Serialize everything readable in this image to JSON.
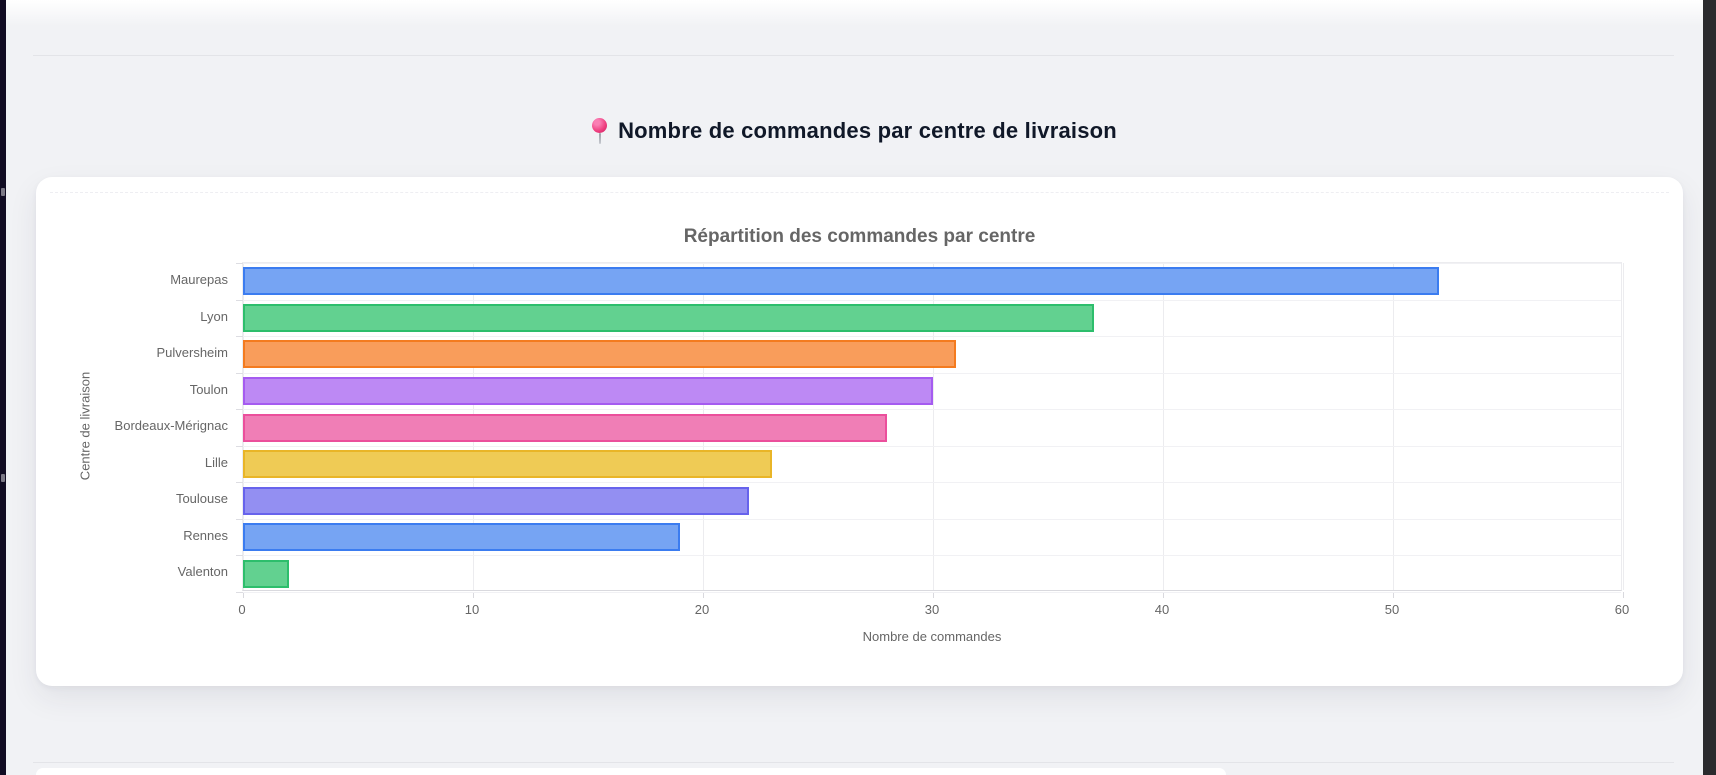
{
  "page": {
    "heading": {
      "icon": "round-pushpin-icon",
      "text": "Nombre de commandes par centre de livraison"
    }
  },
  "chart_data": {
    "type": "bar",
    "orientation": "horizontal",
    "title": "Répartition des commandes par centre",
    "categories": [
      "Maurepas",
      "Lyon",
      "Pulversheim",
      "Toulon",
      "Bordeaux-Mérignac",
      "Lille",
      "Toulouse",
      "Rennes",
      "Valenton"
    ],
    "values": [
      52,
      37,
      31,
      30,
      28,
      23,
      22,
      19,
      2
    ],
    "xlabel": "Nombre de commandes",
    "ylabel": "Centre de livraison",
    "xlim": [
      0,
      60
    ],
    "xticks": [
      0,
      10,
      20,
      30,
      40,
      50,
      60
    ],
    "grid": true,
    "legend": "none",
    "bar_colors": [
      {
        "fill": "#76A4F3",
        "border": "#3B7CF0"
      },
      {
        "fill": "#62D190",
        "border": "#2DBE6C"
      },
      {
        "fill": "#F99D5B",
        "border": "#F47B1F"
      },
      {
        "fill": "#BD89F4",
        "border": "#A55BF0"
      },
      {
        "fill": "#F07EB6",
        "border": "#EB4F9C"
      },
      {
        "fill": "#EFCB55",
        "border": "#E9B527"
      },
      {
        "fill": "#938FF2",
        "border": "#6763EC"
      },
      {
        "fill": "#76A4F3",
        "border": "#3B7CF0"
      },
      {
        "fill": "#62D190",
        "border": "#2DBE6C"
      }
    ]
  }
}
